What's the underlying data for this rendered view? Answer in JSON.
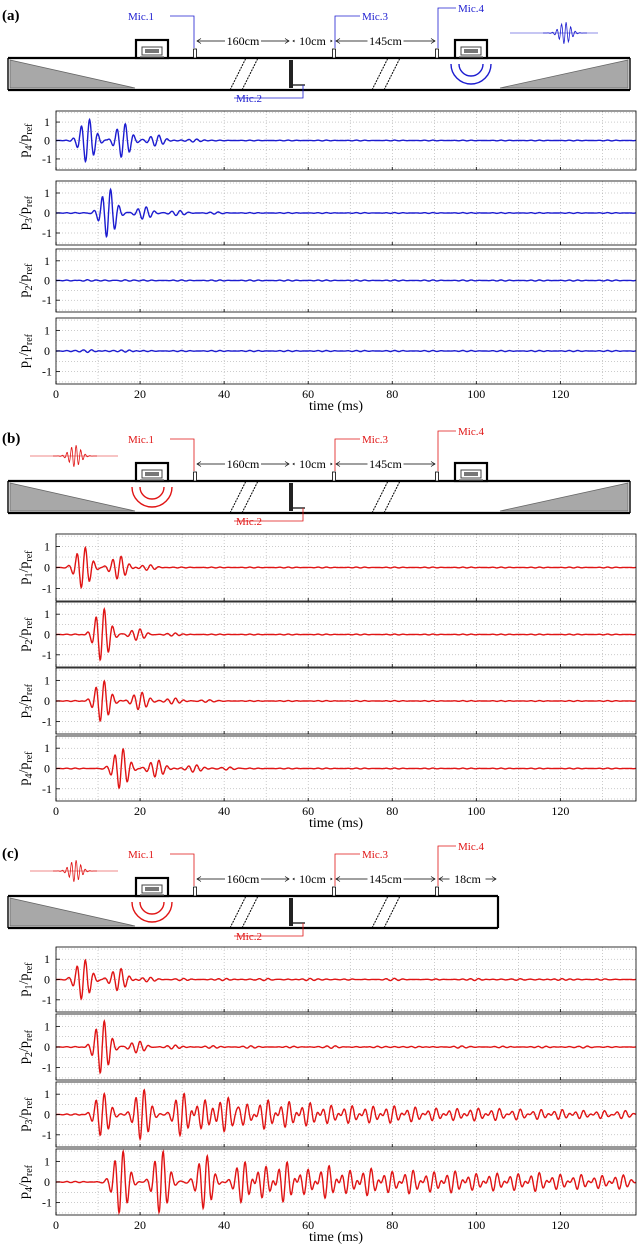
{
  "colors": {
    "source_a": "#1c1cd0",
    "source_bc": "#e01414",
    "axis": "#000000",
    "grid": "#9a9a9a",
    "wedge": "#a8a8a8"
  },
  "time_label": "time (ms)",
  "chart_data": [
    {
      "panel_label": "(a)",
      "type": "line",
      "source_side": "right",
      "duct_end": "open",
      "color_key": "source_a",
      "diagram": {
        "mics": [
          "Mic.1",
          "Mic.2",
          "Mic.3",
          "Mic.4"
        ],
        "dims": [
          "160cm",
          "10cm",
          "145cm"
        ]
      },
      "xlabel": "time (ms)",
      "xlim": [
        0,
        138
      ],
      "xticks": [
        "0",
        "20",
        "40",
        "60",
        "80",
        "100",
        "120"
      ],
      "ylim": [
        -1.6,
        1.6
      ],
      "yticks": [
        "1",
        "0",
        "-1"
      ],
      "grid": true,
      "series": [
        {
          "ylabel_main": "p",
          "ylabel_sub": "4",
          "ylabel_div": "/p",
          "ylabel_ref": "ref",
          "bursts": [
            [
              7.5,
              1.2
            ],
            [
              16,
              0.95
            ],
            [
              24,
              0.3
            ],
            [
              33,
              0.08
            ]
          ],
          "noise": 0.02
        },
        {
          "ylabel_main": "p",
          "ylabel_sub": "3",
          "ylabel_div": "/p",
          "ylabel_ref": "ref",
          "bursts": [
            [
              12.5,
              1.25
            ],
            [
              21,
              0.33
            ],
            [
              29,
              0.12
            ],
            [
              38,
              0.05
            ]
          ],
          "noise": 0.02
        },
        {
          "ylabel_main": "p",
          "ylabel_sub": "2",
          "ylabel_div": "/p",
          "ylabel_ref": "ref",
          "bursts": [
            [
              7,
              0.05
            ],
            [
              16,
              0.04
            ]
          ],
          "noise": 0.025
        },
        {
          "ylabel_main": "p",
          "ylabel_sub": "1",
          "ylabel_div": "/p",
          "ylabel_ref": "ref",
          "bursts": [
            [
              8,
              0.06
            ],
            [
              17,
              0.05
            ]
          ],
          "noise": 0.025
        }
      ]
    },
    {
      "panel_label": "(b)",
      "type": "line",
      "source_side": "left",
      "duct_end": "open",
      "color_key": "source_bc",
      "diagram": {
        "mics": [
          "Mic.1",
          "Mic.2",
          "Mic.3",
          "Mic.4"
        ],
        "dims": [
          "160cm",
          "10cm",
          "145cm"
        ]
      },
      "xlabel": "time (ms)",
      "xlim": [
        0,
        138
      ],
      "xticks": [
        "0",
        "20",
        "40",
        "60",
        "80",
        "100",
        "120"
      ],
      "ylim": [
        -1.6,
        1.6
      ],
      "yticks": [
        "1",
        "0",
        "-1"
      ],
      "grid": true,
      "series": [
        {
          "ylabel_main": "p",
          "ylabel_sub": "1",
          "ylabel_div": "/p",
          "ylabel_ref": "ref",
          "bursts": [
            [
              6.5,
              1.0
            ],
            [
              15,
              0.55
            ],
            [
              22,
              0.12
            ]
          ],
          "noise": 0.02
        },
        {
          "ylabel_main": "p",
          "ylabel_sub": "2",
          "ylabel_div": "/p",
          "ylabel_ref": "ref",
          "bursts": [
            [
              11,
              1.3
            ],
            [
              19.5,
              0.3
            ],
            [
              28,
              0.08
            ]
          ],
          "noise": 0.02
        },
        {
          "ylabel_main": "p",
          "ylabel_sub": "3",
          "ylabel_div": "/p",
          "ylabel_ref": "ref",
          "bursts": [
            [
              11,
              1.0
            ],
            [
              20,
              0.42
            ],
            [
              28,
              0.15
            ],
            [
              36,
              0.06
            ]
          ],
          "noise": 0.02
        },
        {
          "ylabel_main": "p",
          "ylabel_sub": "4",
          "ylabel_div": "/p",
          "ylabel_ref": "ref",
          "bursts": [
            [
              15.5,
              1.0
            ],
            [
              24,
              0.42
            ],
            [
              33,
              0.18
            ],
            [
              41,
              0.07
            ]
          ],
          "noise": 0.02
        }
      ]
    },
    {
      "panel_label": "(c)",
      "type": "line",
      "source_side": "left",
      "duct_end": "closed",
      "color_key": "source_bc",
      "diagram": {
        "mics": [
          "Mic.1",
          "Mic.2",
          "Mic.3",
          "Mic.4"
        ],
        "dims": [
          "160cm",
          "10cm",
          "145cm",
          "18cm"
        ]
      },
      "xlabel": "time (ms)",
      "xlim": [
        0,
        138
      ],
      "xticks": [
        "0",
        "20",
        "40",
        "60",
        "80",
        "100",
        "120"
      ],
      "ylim": [
        -1.6,
        1.6
      ],
      "yticks": [
        "1",
        "0",
        "-1"
      ],
      "grid": true,
      "series": [
        {
          "ylabel_main": "p",
          "ylabel_sub": "1",
          "ylabel_div": "/p",
          "ylabel_ref": "ref",
          "bursts": [
            [
              6.5,
              1.0
            ],
            [
              15,
              0.55
            ],
            [
              22,
              0.1
            ],
            [
              30,
              0.06
            ],
            [
              40,
              0.05
            ],
            [
              50,
              0.05
            ],
            [
              60,
              0.05
            ],
            [
              70,
              0.04
            ],
            [
              80,
              0.04
            ],
            [
              90,
              0.04
            ],
            [
              100,
              0.04
            ],
            [
              110,
              0.04
            ],
            [
              120,
              0.04
            ],
            [
              130,
              0.04
            ]
          ],
          "noise": 0.02
        },
        {
          "ylabel_main": "p",
          "ylabel_sub": "2",
          "ylabel_div": "/p",
          "ylabel_ref": "ref",
          "bursts": [
            [
              11,
              1.3
            ],
            [
              19.5,
              0.3
            ],
            [
              28,
              0.1
            ],
            [
              37,
              0.06
            ],
            [
              46,
              0.05
            ],
            [
              56,
              0.05
            ],
            [
              66,
              0.05
            ],
            [
              76,
              0.04
            ],
            [
              86,
              0.04
            ],
            [
              96,
              0.04
            ],
            [
              106,
              0.04
            ],
            [
              116,
              0.04
            ],
            [
              126,
              0.04
            ]
          ],
          "noise": 0.02
        },
        {
          "ylabel_main": "p",
          "ylabel_sub": "3",
          "ylabel_div": "/p",
          "ylabel_ref": "ref",
          "bursts": [
            [
              11,
              1.05
            ],
            [
              20.5,
              1.25
            ],
            [
              30,
              1.1
            ],
            [
              35,
              0.75
            ],
            [
              40.5,
              0.85
            ],
            [
              45,
              0.55
            ],
            [
              50,
              0.75
            ],
            [
              55,
              0.65
            ],
            [
              60,
              0.6
            ],
            [
              65,
              0.5
            ],
            [
              70,
              0.48
            ],
            [
              75,
              0.42
            ],
            [
              80,
              0.42
            ],
            [
              85,
              0.38
            ],
            [
              90,
              0.35
            ],
            [
              95,
              0.32
            ],
            [
              100,
              0.32
            ],
            [
              105,
              0.3
            ],
            [
              110,
              0.28
            ],
            [
              115,
              0.25
            ],
            [
              120,
              0.25
            ],
            [
              125,
              0.22
            ],
            [
              130,
              0.22
            ],
            [
              135,
              0.2
            ]
          ],
          "noise": 0.03
        },
        {
          "ylabel_main": "p",
          "ylabel_sub": "4",
          "ylabel_div": "/p",
          "ylabel_ref": "ref",
          "bursts": [
            [
              15.5,
              1.55
            ],
            [
              25,
              1.55
            ],
            [
              35.5,
              1.35
            ],
            [
              44.5,
              1.05
            ],
            [
              49.5,
              0.8
            ],
            [
              54.5,
              1.0
            ],
            [
              59.5,
              0.65
            ],
            [
              64.5,
              0.85
            ],
            [
              69.5,
              0.6
            ],
            [
              74.5,
              0.7
            ],
            [
              79.5,
              0.55
            ],
            [
              84.5,
              0.6
            ],
            [
              89.5,
              0.5
            ],
            [
              94.5,
              0.55
            ],
            [
              99.5,
              0.45
            ],
            [
              104.5,
              0.48
            ],
            [
              109.5,
              0.42
            ],
            [
              114.5,
              0.45
            ],
            [
              119.5,
              0.38
            ],
            [
              124.5,
              0.4
            ],
            [
              129.5,
              0.35
            ],
            [
              134.5,
              0.35
            ]
          ],
          "noise": 0.03
        }
      ]
    }
  ]
}
